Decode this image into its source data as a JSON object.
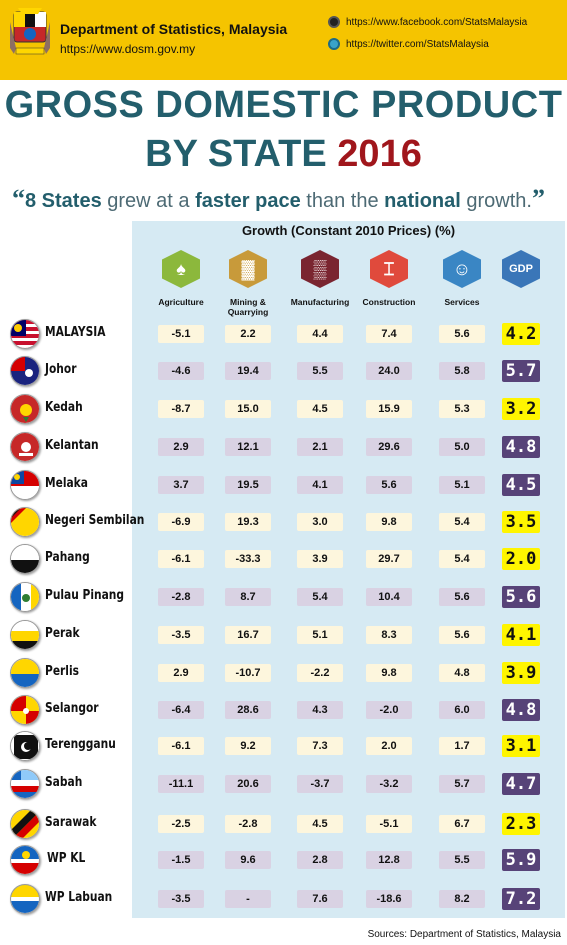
{
  "header": {
    "department": "Department of Statistics, Malaysia",
    "website": "https://www.dosm.gov.my",
    "facebook": "https://www.facebook.com/StatsMalaysia",
    "twitter": "https://twitter.com/StatsMalaysia"
  },
  "title": {
    "line1": "GROSS DOMESTIC PRODUCT",
    "line2": "BY STATE",
    "year": "2016"
  },
  "quote": {
    "open": "“",
    "p1": "8 States",
    "p2": " grew at a ",
    "p3": "faster pace",
    "p4": " than the ",
    "p5": "national",
    "p6": " growth.",
    "close": "”"
  },
  "table_header": "Growth (Constant 2010 Prices) (%)",
  "sectors": [
    {
      "label": "Agriculture",
      "icon": "palm-tree-icon",
      "color": "#8cb83c"
    },
    {
      "label": "Mining & Quarrying",
      "icon": "oil-refinery-icon",
      "color": "#c89a3a"
    },
    {
      "label": "Manufacturing",
      "icon": "factory-icon",
      "color": "#7a2530"
    },
    {
      "label": "Construction",
      "icon": "crane-icon",
      "color": "#e04a3c"
    },
    {
      "label": "Services",
      "icon": "service-bell-icon",
      "color": "#3a86c4"
    },
    {
      "label": "GDP",
      "icon": "gdp-icon",
      "color": "#3a76b8"
    }
  ],
  "chart_data": {
    "type": "table",
    "title": "Growth (Constant 2010 Prices) (%)",
    "columns": [
      "Agriculture",
      "Mining & Quarrying",
      "Manufacturing",
      "Construction",
      "Services",
      "GDP"
    ],
    "rows": [
      {
        "state": "MALAYSIA",
        "values": [
          "-5.1",
          "2.2",
          "4.4",
          "7.4",
          "5.6",
          "4.2"
        ]
      },
      {
        "state": "Johor",
        "values": [
          "-4.6",
          "19.4",
          "5.5",
          "24.0",
          "5.8",
          "5.7"
        ]
      },
      {
        "state": "Kedah",
        "values": [
          "-8.7",
          "15.0",
          "4.5",
          "15.9",
          "5.3",
          "3.2"
        ]
      },
      {
        "state": "Kelantan",
        "values": [
          "2.9",
          "12.1",
          "2.1",
          "29.6",
          "5.0",
          "4.8"
        ]
      },
      {
        "state": "Melaka",
        "values": [
          "3.7",
          "19.5",
          "4.1",
          "5.6",
          "5.1",
          "4.5"
        ]
      },
      {
        "state": "Negeri Sembilan",
        "values": [
          "-6.9",
          "19.3",
          "3.0",
          "9.8",
          "5.4",
          "3.5"
        ]
      },
      {
        "state": "Pahang",
        "values": [
          "-6.1",
          "-33.3",
          "3.9",
          "29.7",
          "5.4",
          "2.0"
        ]
      },
      {
        "state": "Pulau Pinang",
        "values": [
          "-2.8",
          "8.7",
          "5.4",
          "10.4",
          "5.6",
          "5.6"
        ]
      },
      {
        "state": "Perak",
        "values": [
          "-3.5",
          "16.7",
          "5.1",
          "8.3",
          "5.6",
          "4.1"
        ]
      },
      {
        "state": "Perlis",
        "values": [
          "2.9",
          "-10.7",
          "-2.2",
          "9.8",
          "4.8",
          "3.9"
        ]
      },
      {
        "state": "Selangor",
        "values": [
          "-6.4",
          "28.6",
          "4.3",
          "-2.0",
          "6.0",
          "4.8"
        ]
      },
      {
        "state": "Terengganu",
        "values": [
          "-6.1",
          "9.2",
          "7.3",
          "2.0",
          "1.7",
          "3.1"
        ]
      },
      {
        "state": "Sabah",
        "values": [
          "-11.1",
          "20.6",
          "-3.7",
          "-3.2",
          "5.7",
          "4.7"
        ]
      },
      {
        "state": "Sarawak",
        "values": [
          "-2.5",
          "-2.8",
          "4.5",
          "-5.1",
          "6.7",
          "2.3"
        ]
      },
      {
        "state": "WP KL",
        "values": [
          "-1.5",
          "9.6",
          "2.8",
          "12.8",
          "5.5",
          "5.9"
        ]
      },
      {
        "state": "WP Labuan",
        "values": [
          "-3.5",
          "-",
          "7.6",
          "-18.6",
          "8.2",
          "7.2"
        ]
      }
    ],
    "national_gdp": 4.2,
    "colors": {
      "above_national": "#574378",
      "at_or_below_national": "#fff500",
      "above_national_cell": "#d9d2e3",
      "below_national_cell": "#fdf6dd"
    }
  },
  "flags": {
    "MALAYSIA": [
      "#c8102e",
      "#ffffff",
      "#010066",
      "#ffcc00"
    ],
    "Johor": [
      "#1a237e",
      "#d50000",
      "#ffffff"
    ],
    "Kedah": [
      "#c62828",
      "#ffd600",
      "#2e7d32"
    ],
    "Kelantan": [
      "#c62828",
      "#ffffff"
    ],
    "Melaka": [
      "#d50000",
      "#ffffff",
      "#0d47a1",
      "#ffd600"
    ],
    "Negeri Sembilan": [
      "#ffd600",
      "#111111",
      "#d50000"
    ],
    "Pahang": [
      "#ffffff",
      "#111111"
    ],
    "Pulau Pinang": [
      "#1565c0",
      "#ffffff",
      "#ffd600"
    ],
    "Perak": [
      "#ffffff",
      "#ffd600",
      "#111111"
    ],
    "Perlis": [
      "#ffd600",
      "#1565c0"
    ],
    "Selangor": [
      "#ffd600",
      "#d50000"
    ],
    "Terengganu": [
      "#111111",
      "#ffffff"
    ],
    "Sabah": [
      "#1565c0",
      "#90caf9",
      "#ffffff",
      "#d50000"
    ],
    "Sarawak": [
      "#ffd600",
      "#d50000",
      "#111111"
    ],
    "WP KL": [
      "#1565c0",
      "#d50000",
      "#ffffff",
      "#ffd600"
    ],
    "WP Labuan": [
      "#1565c0",
      "#ffd600",
      "#ffffff"
    ]
  },
  "source": "Sources: Department of Statistics, Malaysia"
}
